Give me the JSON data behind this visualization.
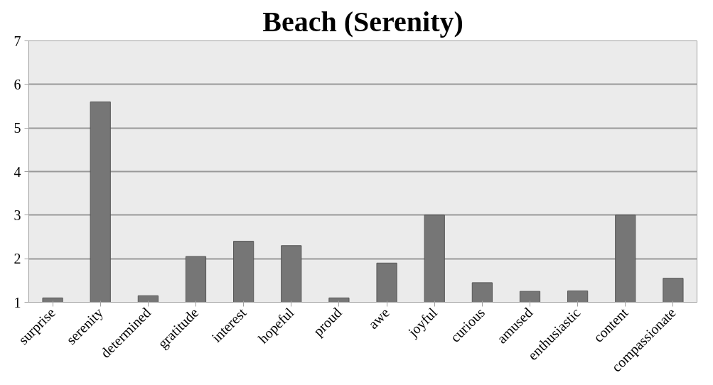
{
  "chart_data": {
    "type": "bar",
    "title": "Beach (Serenity)",
    "categories": [
      "surprise",
      "serenity",
      "determined",
      "gratitude",
      "interest",
      "hopeful",
      "proud",
      "awe",
      "joyful",
      "curious",
      "amused",
      "enthusiastic",
      "content",
      "compassionate"
    ],
    "values": [
      1.1,
      5.6,
      1.15,
      2.05,
      2.4,
      2.3,
      1.1,
      1.9,
      3.0,
      1.45,
      1.25,
      1.26,
      3.0,
      1.55
    ],
    "color": "#767676",
    "ylim": [
      1,
      7
    ],
    "yticks": [
      1,
      2,
      3,
      4,
      5,
      6,
      7
    ],
    "grid": "y"
  }
}
